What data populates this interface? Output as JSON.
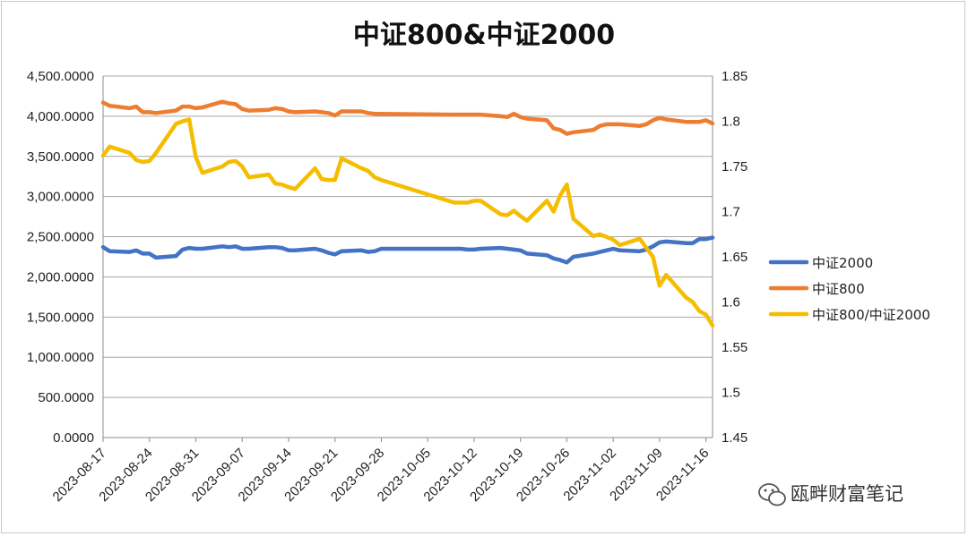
{
  "chart_data": {
    "type": "line",
    "title": "中证800&中证2000",
    "x": [
      "2023-08-17",
      "2023-08-18",
      "2023-08-21",
      "2023-08-22",
      "2023-08-23",
      "2023-08-24",
      "2023-08-25",
      "2023-08-28",
      "2023-08-29",
      "2023-08-30",
      "2023-08-31",
      "2023-09-01",
      "2023-09-04",
      "2023-09-05",
      "2023-09-06",
      "2023-09-07",
      "2023-09-08",
      "2023-09-11",
      "2023-09-12",
      "2023-09-13",
      "2023-09-14",
      "2023-09-15",
      "2023-09-18",
      "2023-09-19",
      "2023-09-20",
      "2023-09-21",
      "2023-09-22",
      "2023-09-25",
      "2023-09-26",
      "2023-09-27",
      "2023-09-28",
      "2023-10-09",
      "2023-10-10",
      "2023-10-11",
      "2023-10-12",
      "2023-10-13",
      "2023-10-16",
      "2023-10-17",
      "2023-10-18",
      "2023-10-19",
      "2023-10-20",
      "2023-10-23",
      "2023-10-24",
      "2023-10-25",
      "2023-10-26",
      "2023-10-27",
      "2023-10-30",
      "2023-10-31",
      "2023-11-01",
      "2023-11-02",
      "2023-11-03",
      "2023-11-06",
      "2023-11-07",
      "2023-11-08",
      "2023-11-09",
      "2023-11-10",
      "2023-11-13",
      "2023-11-14",
      "2023-11-15",
      "2023-11-16",
      "2023-11-17"
    ],
    "x_ticks": [
      "2023-08-17",
      "2023-08-24",
      "2023-08-31",
      "2023-09-07",
      "2023-09-14",
      "2023-09-21",
      "2023-09-28",
      "2023-10-05",
      "2023-10-12",
      "2023-10-19",
      "2023-10-26",
      "2023-11-02",
      "2023-11-09",
      "2023-11-16"
    ],
    "y_left": {
      "ylim": [
        0,
        4500
      ],
      "ticks": [
        "0.0000",
        "500.0000",
        "1,000.0000",
        "1,500.0000",
        "2,000.0000",
        "2,500.0000",
        "3,000.0000",
        "3,500.0000",
        "4,000.0000",
        "4,500.0000"
      ]
    },
    "y_right": {
      "ylim": [
        1.45,
        1.85
      ],
      "ticks": [
        "1.45",
        "1.5",
        "1.55",
        "1.6",
        "1.65",
        "1.7",
        "1.75",
        "1.8",
        "1.85"
      ]
    },
    "series": [
      {
        "name": "中证2000",
        "axis": "left",
        "color": "#4472C4",
        "values": [
          2370,
          2320,
          2310,
          2330,
          2290,
          2290,
          2240,
          2260,
          2340,
          2360,
          2350,
          2350,
          2380,
          2370,
          2380,
          2350,
          2350,
          2370,
          2370,
          2360,
          2330,
          2330,
          2350,
          2330,
          2300,
          2280,
          2320,
          2330,
          2310,
          2320,
          2350,
          2350,
          2350,
          2340,
          2340,
          2350,
          2360,
          2350,
          2340,
          2330,
          2290,
          2270,
          2230,
          2210,
          2180,
          2250,
          2290,
          2310,
          2330,
          2350,
          2330,
          2320,
          2340,
          2380,
          2430,
          2440,
          2420,
          2420,
          2470,
          2470,
          2490
        ]
      },
      {
        "name": "中证800",
        "axis": "left",
        "color": "#ED7D31",
        "values": [
          4170,
          4130,
          4100,
          4120,
          4050,
          4050,
          4040,
          4070,
          4120,
          4120,
          4100,
          4110,
          4180,
          4160,
          4150,
          4090,
          4070,
          4080,
          4100,
          4090,
          4060,
          4050,
          4060,
          4050,
          4040,
          4010,
          4060,
          4060,
          4040,
          4030,
          4030,
          4020,
          4020,
          4020,
          4020,
          4020,
          4000,
          3990,
          4030,
          3990,
          3970,
          3950,
          3850,
          3830,
          3780,
          3800,
          3830,
          3880,
          3900,
          3900,
          3900,
          3880,
          3900,
          3950,
          3980,
          3960,
          3930,
          3930,
          3930,
          3950,
          3910
        ]
      },
      {
        "name": "中证800/中证2000",
        "axis": "right",
        "color": "#F5BD00",
        "values": [
          1.762,
          1.772,
          1.765,
          1.757,
          1.755,
          1.756,
          1.765,
          1.797,
          1.8,
          1.802,
          1.76,
          1.743,
          1.75,
          1.755,
          1.756,
          1.75,
          1.738,
          1.741,
          1.731,
          1.73,
          1.727,
          1.725,
          1.748,
          1.736,
          1.735,
          1.735,
          1.759,
          1.748,
          1.745,
          1.738,
          1.735,
          1.71,
          1.71,
          1.71,
          1.712,
          1.712,
          1.697,
          1.696,
          1.701,
          1.695,
          1.69,
          1.712,
          1.7,
          1.718,
          1.73,
          1.692,
          1.673,
          1.675,
          1.672,
          1.669,
          1.663,
          1.67,
          1.66,
          1.65,
          1.618,
          1.63,
          1.605,
          1.6,
          1.59,
          1.586,
          1.574
        ]
      }
    ],
    "legend_position": "right",
    "grid": true
  },
  "watermark": {
    "text": "瓯畔财富笔记",
    "icon": "wechat-icon"
  }
}
